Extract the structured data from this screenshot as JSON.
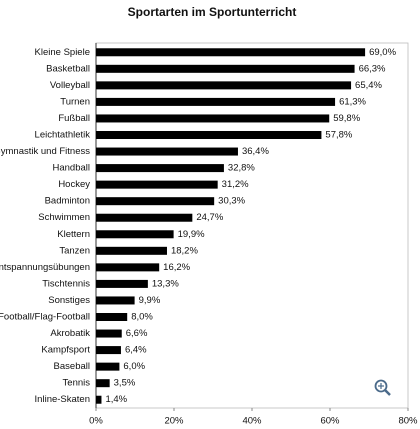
{
  "chart_data": {
    "type": "bar",
    "orientation": "horizontal",
    "title": "Sportarten im Sportunterricht",
    "categories": [
      "Kleine Spiele",
      "Basketball",
      "Volleyball",
      "Turnen",
      "Fußball",
      "Leichtathletik",
      "Gymnastik und Fitness",
      "Handball",
      "Hockey",
      "Badminton",
      "Schwimmen",
      "Klettern",
      "Tanzen",
      "Entspannungsübungen",
      "Tischtennis",
      "Sonstiges",
      "Football/Flag-Football",
      "Akrobatik",
      "Kampfsport",
      "Baseball",
      "Tennis",
      "Inline-Skaten"
    ],
    "values": [
      69.0,
      66.3,
      65.4,
      61.3,
      59.8,
      57.8,
      36.4,
      32.8,
      31.2,
      30.3,
      24.7,
      19.9,
      18.2,
      16.2,
      13.3,
      9.9,
      8.0,
      6.6,
      6.4,
      6.0,
      3.5,
      1.4
    ],
    "value_labels": [
      "69,0%",
      "66,3%",
      "65,4%",
      "61,3%",
      "59,8%",
      "57,8%",
      "36,4%",
      "32,8%",
      "31,2%",
      "30,3%",
      "24,7%",
      "19,9%",
      "18,2%",
      "16,2%",
      "13,3%",
      "9,9%",
      "8,0%",
      "6,6%",
      "6,4%",
      "6,0%",
      "3,5%",
      "1,4%"
    ],
    "color": "#000000",
    "xlim": [
      0,
      80
    ],
    "xticks": [
      {
        "value": 0,
        "label": "0%"
      },
      {
        "value": 20,
        "label": "20%"
      },
      {
        "value": 40,
        "label": "40%"
      },
      {
        "value": 60,
        "label": "60%"
      },
      {
        "value": 80,
        "label": "80%"
      }
    ]
  }
}
